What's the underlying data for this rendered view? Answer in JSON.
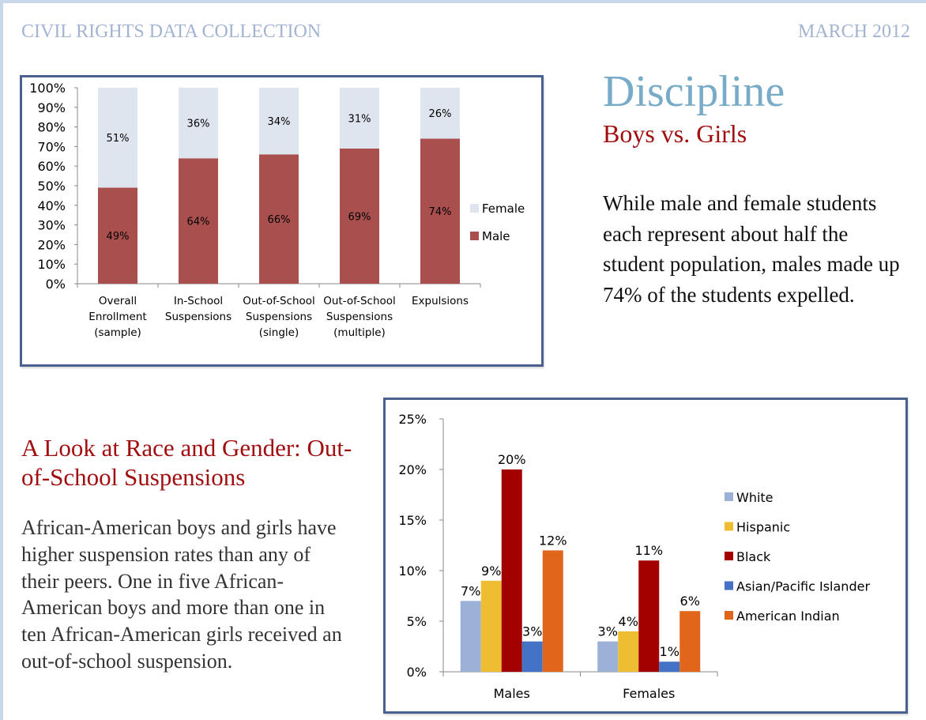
{
  "header": {
    "left": "CIVIL RIGHTS DATA COLLECTION",
    "right": "MARCH 2012"
  },
  "section1": {
    "title": "Discipline",
    "subtitle": "Boys vs. Girls",
    "body": "While male and female students each represent about half the student population, males made up 74% of the students expelled."
  },
  "section2": {
    "title": "A Look at Race and Gender: Out-of-School Suspensions",
    "body": "African-American boys and girls have higher suspension rates than any of their peers. One in five African-American boys and more than one in ten African-American girls received an out-of-school suspension."
  },
  "colors": {
    "male": "#a9504f",
    "female": "#dfe5ef",
    "white": "#9cb1d6",
    "hispanic": "#efbd32",
    "black": "#a30000",
    "asian": "#4472c4",
    "american_indian": "#e0661c",
    "frame": "#4a6190"
  },
  "chart_data": [
    {
      "type": "bar",
      "stacked": true,
      "title": "",
      "xlabel": "",
      "ylabel": "",
      "ylim": [
        0,
        100
      ],
      "yticks": [
        "0%",
        "10%",
        "20%",
        "30%",
        "40%",
        "50%",
        "60%",
        "70%",
        "80%",
        "90%",
        "100%"
      ],
      "categories": [
        [
          "Overall",
          "Enrollment",
          "(sample)"
        ],
        [
          "In-School",
          "Suspensions"
        ],
        [
          "Out-of-School",
          "Suspensions",
          "(single)"
        ],
        [
          "Out-of-School",
          "Suspensions",
          "(multiple)"
        ],
        [
          "Expulsions"
        ]
      ],
      "series": [
        {
          "name": "Male",
          "values": [
            49,
            64,
            66,
            69,
            74
          ],
          "labels": [
            "49%",
            "64%",
            "66%",
            "69%",
            "74%"
          ]
        },
        {
          "name": "Female",
          "values": [
            51,
            36,
            34,
            31,
            26
          ],
          "labels": [
            "51%",
            "36%",
            "34%",
            "31%",
            "26%"
          ]
        }
      ],
      "legend": {
        "position": "right",
        "entries": [
          "Female",
          "Male"
        ]
      },
      "grid": false
    },
    {
      "type": "bar",
      "stacked": false,
      "title": "",
      "xlabel": "",
      "ylabel": "",
      "ylim": [
        0,
        25
      ],
      "yticks": [
        "0%",
        "5%",
        "10%",
        "15%",
        "20%",
        "25%"
      ],
      "categories": [
        "Males",
        "Females"
      ],
      "series": [
        {
          "name": "White",
          "values": [
            7,
            3
          ],
          "labels": [
            "7%",
            "3%"
          ]
        },
        {
          "name": "Hispanic",
          "values": [
            9,
            4
          ],
          "labels": [
            "9%",
            "4%"
          ]
        },
        {
          "name": "Black",
          "values": [
            20,
            11
          ],
          "labels": [
            "20%",
            "11%"
          ]
        },
        {
          "name": "Asian/Pacific Islander",
          "values": [
            3,
            1
          ],
          "labels": [
            "3%",
            "1%"
          ]
        },
        {
          "name": "American Indian",
          "values": [
            12,
            6
          ],
          "labels": [
            "12%",
            "6%"
          ]
        }
      ],
      "legend": {
        "position": "right",
        "entries": [
          "White",
          "Hispanic",
          "Black",
          "Asian/Pacific Islander",
          "American Indian"
        ]
      },
      "grid": false
    }
  ]
}
